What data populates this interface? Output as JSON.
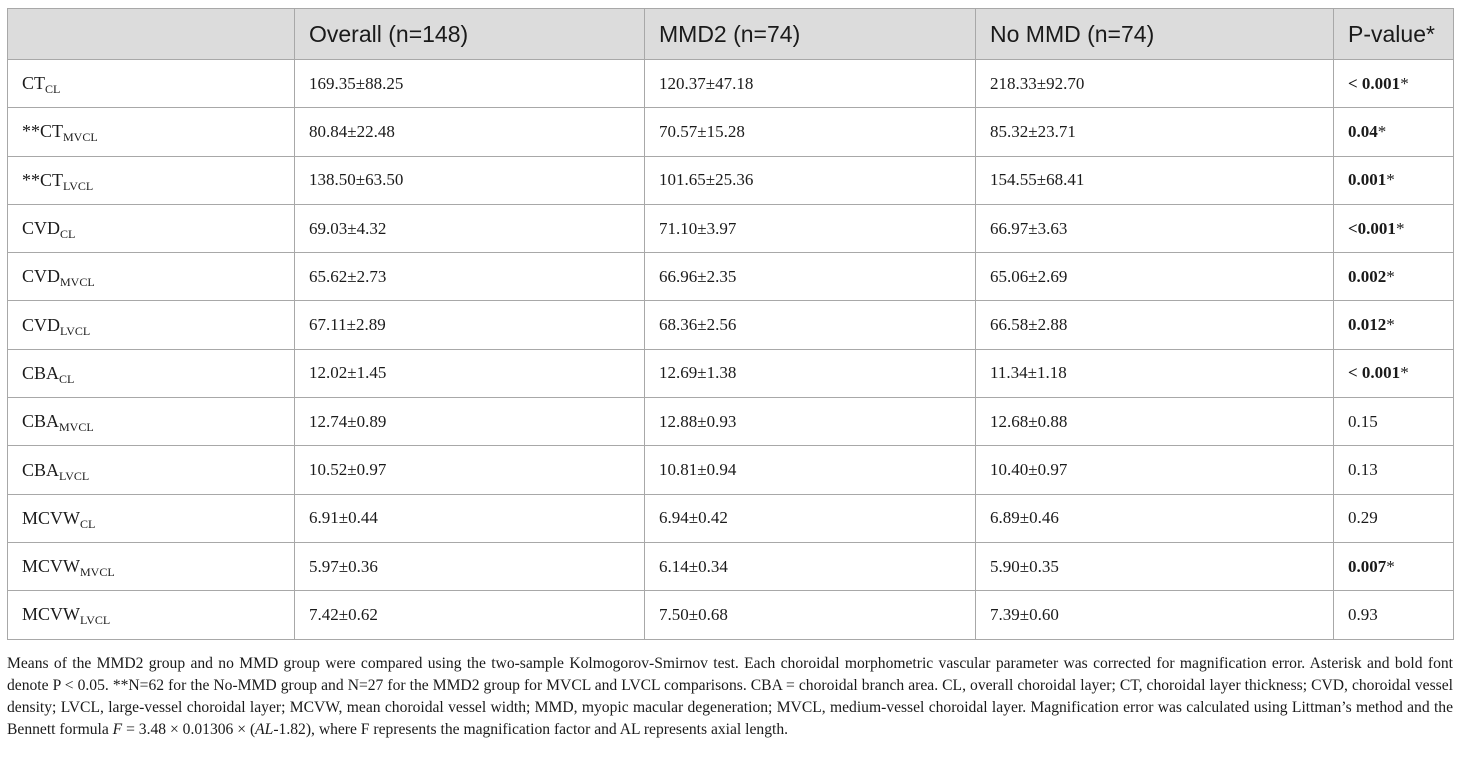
{
  "table": {
    "headers": [
      "",
      "Overall (n=148)",
      "MMD2 (n=74)",
      "No MMD (n=74)",
      "P-value*"
    ],
    "rows": [
      {
        "prefix": "",
        "name": "CT",
        "sub": "CL",
        "overall": "169.35±88.25",
        "mmd2": "120.37±47.18",
        "nommd": "218.33±92.70",
        "p_bold": "< 0.001",
        "p_star": "*",
        "p_plain": ""
      },
      {
        "prefix": "**",
        "name": "CT",
        "sub": "MVCL",
        "overall": "80.84±22.48",
        "mmd2": "70.57±15.28",
        "nommd": "85.32±23.71",
        "p_bold": "0.04",
        "p_star": "*",
        "p_plain": ""
      },
      {
        "prefix": "**",
        "name": "CT",
        "sub": "LVCL",
        "overall": "138.50±63.50",
        "mmd2": "101.65±25.36",
        "nommd": "154.55±68.41",
        "p_bold": "0.001",
        "p_star": "*",
        "p_plain": ""
      },
      {
        "prefix": "",
        "name": "CVD",
        "sub": "CL",
        "overall": "69.03±4.32",
        "mmd2": "71.10±3.97",
        "nommd": "66.97±3.63",
        "p_bold": "<0.001",
        "p_star": "*",
        "p_plain": ""
      },
      {
        "prefix": "",
        "name": "CVD",
        "sub": "MVCL",
        "overall": "65.62±2.73",
        "mmd2": "66.96±2.35",
        "nommd": "65.06±2.69",
        "p_bold": "0.002",
        "p_star": "*",
        "p_plain": ""
      },
      {
        "prefix": "",
        "name": "CVD",
        "sub": "LVCL",
        "overall": "67.11±2.89",
        "mmd2": "68.36±2.56",
        "nommd": "66.58±2.88",
        "p_bold": "0.012",
        "p_star": "*",
        "p_plain": ""
      },
      {
        "prefix": "",
        "name": "CBA",
        "sub": "CL",
        "overall": "12.02±1.45",
        "mmd2": "12.69±1.38",
        "nommd": "11.34±1.18",
        "p_bold": "< 0.001",
        "p_star": "*",
        "p_plain": ""
      },
      {
        "prefix": "",
        "name": "CBA",
        "sub": "MVCL",
        "overall": "12.74±0.89",
        "mmd2": "12.88±0.93",
        "nommd": "12.68±0.88",
        "p_bold": "",
        "p_star": "",
        "p_plain": "0.15"
      },
      {
        "prefix": "",
        "name": "CBA",
        "sub": "LVCL",
        "overall": "10.52±0.97",
        "mmd2": "10.81±0.94",
        "nommd": "10.40±0.97",
        "p_bold": "",
        "p_star": "",
        "p_plain": "0.13"
      },
      {
        "prefix": "",
        "name": "MCVW",
        "sub": "CL",
        "overall": "6.91±0.44",
        "mmd2": "6.94±0.42",
        "nommd": "6.89±0.46",
        "p_bold": "",
        "p_star": "",
        "p_plain": "0.29"
      },
      {
        "prefix": "",
        "name": "MCVW",
        "sub": "MVCL",
        "overall": "5.97±0.36",
        "mmd2": "6.14±0.34",
        "nommd": "5.90±0.35",
        "p_bold": "0.007",
        "p_star": "*",
        "p_plain": ""
      },
      {
        "prefix": "",
        "name": "MCVW",
        "sub": "LVCL",
        "overall": "7.42±0.62",
        "mmd2": "7.50±0.68",
        "nommd": "7.39±0.60",
        "p_bold": "",
        "p_star": "",
        "p_plain": "0.93"
      }
    ]
  },
  "footnote": {
    "text_before_formula": "Means of the MMD2 group and no MMD group were compared using the two-sample Kolmogorov-Smirnov test. Each choroidal morphometric vascular parameter was corrected for magnification error. Asterisk and bold font denote P < 0.05. **N=62 for the No-MMD group and N=27 for the MMD2 group for MVCL and LVCL comparisons. CBA = choroidal branch area. CL, overall choroidal layer; CT, choroidal layer thickness; CVD, choroidal vessel density; LVCL, large-vessel choroidal layer; MCVW, mean choroidal vessel width; MMD, myopic macular degeneration; MVCL, medium-vessel choroidal layer. Magnification error was calculated using Littman’s method and the Bennett formula ",
    "formula_var_f": "F",
    "formula_mid": " = 3.48 × 0.01306 × (",
    "formula_var_al": "AL",
    "formula_end": "-1.82), where F represents the magnification factor and AL represents axial length."
  }
}
